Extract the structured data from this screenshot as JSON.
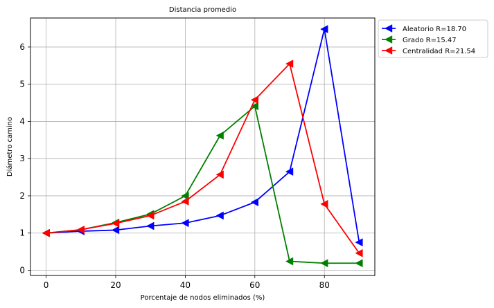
{
  "chart_data": {
    "type": "line",
    "title": "Distancia promedio",
    "xlabel": "Porcentaje de nodos eliminados (%)",
    "ylabel": "Diámetro camino",
    "xlim": [
      -4.5,
      94.5
    ],
    "ylim": [
      -0.14,
      6.78
    ],
    "xticks": [
      0,
      20,
      40,
      60,
      80
    ],
    "yticks": [
      0,
      1,
      2,
      3,
      4,
      5,
      6
    ],
    "grid": true,
    "legend_position": "outside-top-right",
    "marker": "left-triangle",
    "x": [
      0,
      10,
      20,
      30,
      40,
      50,
      60,
      70,
      80,
      90
    ],
    "series": [
      {
        "name": "Aleatorio R=18.70",
        "color": "#0000ff",
        "values": [
          1.0,
          1.05,
          1.08,
          1.19,
          1.27,
          1.47,
          1.83,
          2.65,
          6.48,
          0.75
        ]
      },
      {
        "name": "Grado R=15.47",
        "color": "#008000",
        "values": [
          1.0,
          1.09,
          1.28,
          1.51,
          2.0,
          3.62,
          4.41,
          0.24,
          0.19,
          0.19
        ]
      },
      {
        "name": "Centralidad R=21.54",
        "color": "#ff0000",
        "values": [
          1.0,
          1.09,
          1.26,
          1.47,
          1.85,
          2.57,
          4.58,
          5.55,
          1.78,
          0.46
        ]
      }
    ]
  }
}
